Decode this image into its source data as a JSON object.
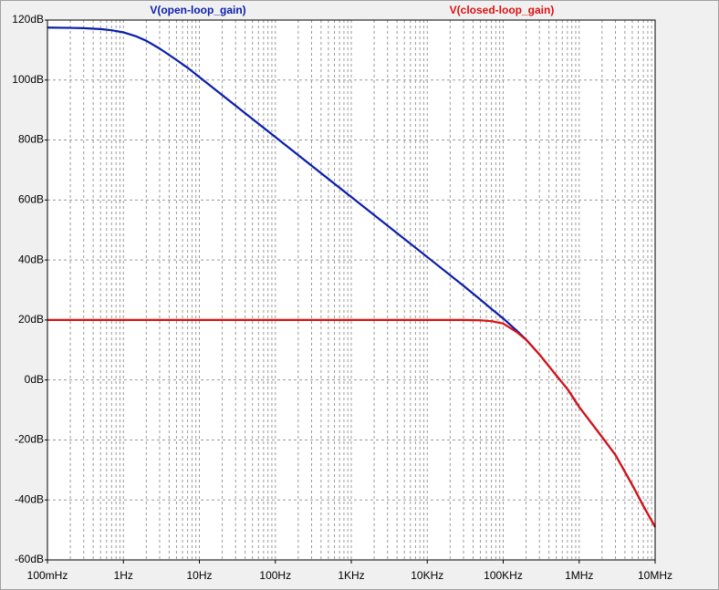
{
  "chart_data": {
    "type": "line",
    "x_scale": "log",
    "x": [
      0.1,
      0.2,
      0.3,
      0.5,
      0.7,
      1,
      1.5,
      2,
      3,
      5,
      7,
      10,
      100,
      1000,
      10000,
      30000,
      50000,
      70000,
      100000,
      150000,
      200000,
      300000,
      500000,
      700000,
      1000000,
      2000000,
      3000000,
      5000000,
      7000000,
      10000000
    ],
    "series": [
      {
        "name": "V(open-loop_gain)",
        "color": "#0a1eaa",
        "values": [
          117.5,
          117.4,
          117.3,
          117.0,
          116.6,
          115.9,
          114.5,
          113.1,
          110.5,
          106.7,
          104.1,
          101,
          81,
          61,
          41,
          31.4,
          26.8,
          23.7,
          20.5,
          16.5,
          13.5,
          8.5,
          1.5,
          -3,
          -9,
          -19,
          -25,
          -35,
          -42,
          -49
        ]
      },
      {
        "name": "V(closed-loop_gain)",
        "color": "#dd1111",
        "values": [
          20,
          20,
          20,
          20,
          20,
          20,
          20,
          20,
          20,
          20,
          20,
          20,
          20,
          20,
          20,
          20,
          19.9,
          19.6,
          18.8,
          16,
          13.4,
          8.5,
          1.5,
          -3,
          -9,
          -19,
          -25,
          -35,
          -42,
          -49
        ]
      }
    ],
    "xlim": [
      0.1,
      10000000
    ],
    "xticks": [
      {
        "value": 0.1,
        "label": "100mHz"
      },
      {
        "value": 1,
        "label": "1Hz"
      },
      {
        "value": 10,
        "label": "10Hz"
      },
      {
        "value": 100,
        "label": "100Hz"
      },
      {
        "value": 1000,
        "label": "1KHz"
      },
      {
        "value": 10000,
        "label": "10KHz"
      },
      {
        "value": 100000,
        "label": "100KHz"
      },
      {
        "value": 1000000,
        "label": "1MHz"
      },
      {
        "value": 10000000,
        "label": "10MHz"
      }
    ],
    "ylim": [
      -60,
      120
    ],
    "yticks": [
      {
        "value": 120,
        "label": "120dB"
      },
      {
        "value": 100,
        "label": "100dB"
      },
      {
        "value": 80,
        "label": "80dB"
      },
      {
        "value": 60,
        "label": "60dB"
      },
      {
        "value": 40,
        "label": "40dB"
      },
      {
        "value": 20,
        "label": "20dB"
      },
      {
        "value": 0,
        "label": "0dB"
      },
      {
        "value": -20,
        "label": "-20dB"
      },
      {
        "value": -40,
        "label": "-40dB"
      },
      {
        "value": -60,
        "label": "-60dB"
      }
    ],
    "grid": true
  }
}
